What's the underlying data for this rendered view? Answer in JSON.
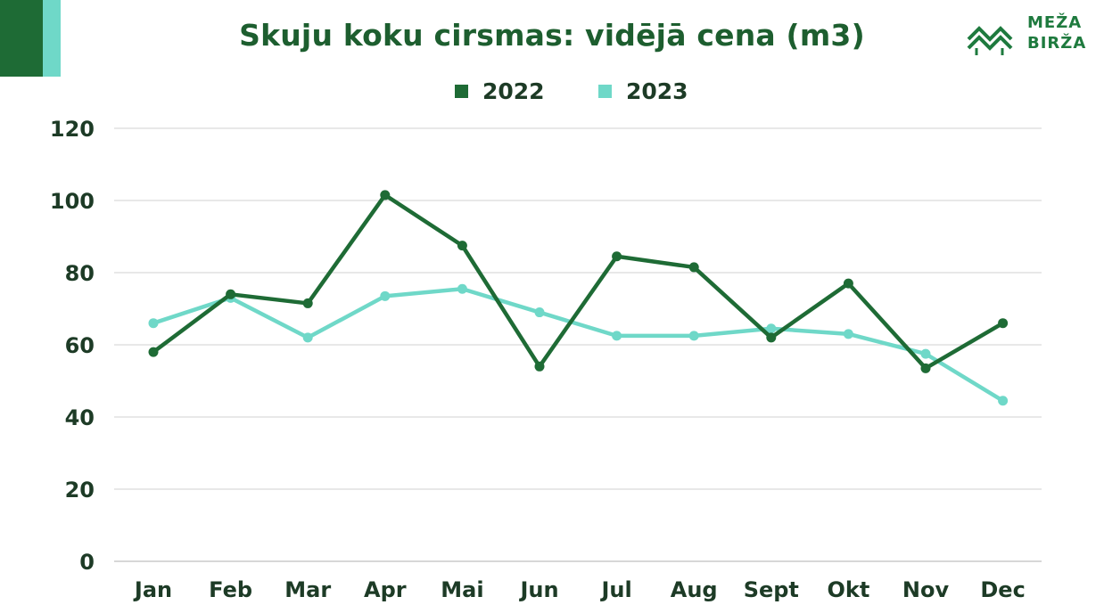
{
  "title": "Skuju koku cirsmas:  vidējā cena (m3)",
  "logo": {
    "line1": "MEŽA",
    "line2": "BIRŽA"
  },
  "colors": {
    "dark_green": "#1e6b35",
    "teal": "#6fd8c8",
    "grid": "#d9d9d9"
  },
  "chart_data": {
    "type": "line",
    "title": "Skuju koku cirsmas:  vidējā cena (m3)",
    "categories": [
      "Jan",
      "Feb",
      "Mar",
      "Apr",
      "Mai",
      "Jun",
      "Jul",
      "Aug",
      "Sept",
      "Okt",
      "Nov",
      "Dec"
    ],
    "series": [
      {
        "name": "2022",
        "color": "#1e6b35",
        "values": [
          58,
          74,
          71.5,
          101.5,
          87.5,
          54,
          84.5,
          81.5,
          62,
          77,
          53.5,
          66
        ]
      },
      {
        "name": "2023",
        "color": "#6fd8c8",
        "values": [
          66,
          73,
          62,
          73.5,
          75.5,
          69,
          62.5,
          62.5,
          64.5,
          63,
          57.5,
          44.5
        ]
      }
    ],
    "yticks": [
      0,
      20,
      40,
      60,
      80,
      100,
      120
    ],
    "ylim": [
      0,
      120
    ],
    "grid": true,
    "legend_position": "top-center"
  }
}
